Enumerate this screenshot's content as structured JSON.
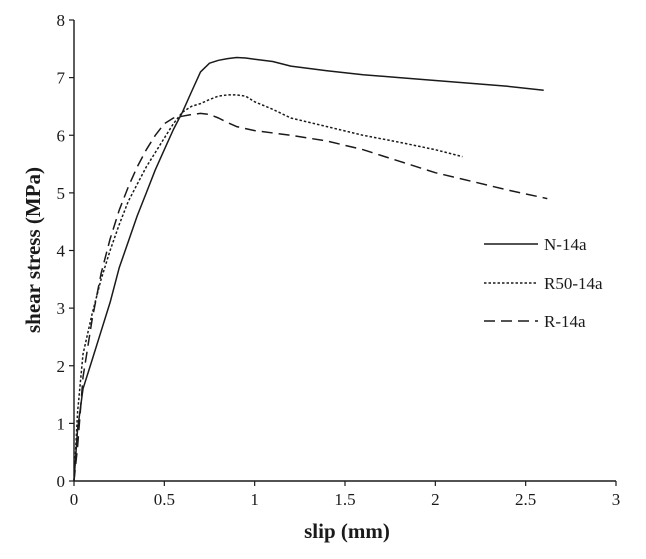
{
  "chart_data": {
    "type": "line",
    "title": "",
    "xlabel": "slip (mm)",
    "ylabel": "shear stress (MPa)",
    "xlim": [
      0,
      3
    ],
    "ylim": [
      0,
      8
    ],
    "xticks": [
      0,
      0.5,
      1,
      1.5,
      2,
      2.5,
      3
    ],
    "xtick_labels": [
      "0",
      "0.5",
      "1",
      "1.5",
      "2",
      "2.5",
      "3"
    ],
    "yticks": [
      0,
      1,
      2,
      3,
      4,
      5,
      6,
      7,
      8
    ],
    "ytick_labels": [
      "0",
      "1",
      "2",
      "3",
      "4",
      "5",
      "6",
      "7",
      "8"
    ],
    "grid": false,
    "legend_position": "right",
    "series": [
      {
        "name": "N-14a",
        "style": "solid",
        "color": "#1a1a1a",
        "x": [
          0,
          0.02,
          0.05,
          0.1,
          0.15,
          0.2,
          0.25,
          0.3,
          0.35,
          0.4,
          0.45,
          0.5,
          0.55,
          0.6,
          0.65,
          0.7,
          0.75,
          0.8,
          0.85,
          0.9,
          0.95,
          1.0,
          1.1,
          1.2,
          1.4,
          1.6,
          1.8,
          2.0,
          2.2,
          2.4,
          2.6
        ],
        "y": [
          0,
          0.9,
          1.6,
          2.1,
          2.6,
          3.1,
          3.7,
          4.15,
          4.6,
          5.0,
          5.4,
          5.75,
          6.1,
          6.4,
          6.75,
          7.1,
          7.25,
          7.3,
          7.33,
          7.35,
          7.34,
          7.32,
          7.28,
          7.2,
          7.12,
          7.05,
          7.0,
          6.95,
          6.9,
          6.85,
          6.78
        ]
      },
      {
        "name": "R50-14a",
        "style": "dotted",
        "color": "#1a1a1a",
        "x": [
          0,
          0.02,
          0.05,
          0.1,
          0.15,
          0.2,
          0.25,
          0.3,
          0.35,
          0.4,
          0.45,
          0.5,
          0.55,
          0.6,
          0.65,
          0.7,
          0.75,
          0.8,
          0.85,
          0.9,
          0.95,
          1.0,
          1.1,
          1.2,
          1.4,
          1.6,
          1.8,
          2.0,
          2.15
        ],
        "y": [
          0,
          1.2,
          2.2,
          2.9,
          3.5,
          4.0,
          4.45,
          4.85,
          5.15,
          5.45,
          5.7,
          5.95,
          6.2,
          6.4,
          6.5,
          6.55,
          6.62,
          6.68,
          6.7,
          6.7,
          6.68,
          6.58,
          6.45,
          6.3,
          6.15,
          6.0,
          5.88,
          5.75,
          5.63
        ]
      },
      {
        "name": "R-14a",
        "style": "dashed",
        "color": "#1a1a1a",
        "x": [
          0,
          0.02,
          0.05,
          0.1,
          0.15,
          0.2,
          0.25,
          0.3,
          0.35,
          0.4,
          0.45,
          0.5,
          0.55,
          0.6,
          0.65,
          0.7,
          0.75,
          0.8,
          0.85,
          0.9,
          1.0,
          1.2,
          1.4,
          1.6,
          1.8,
          2.0,
          2.2,
          2.4,
          2.62
        ],
        "y": [
          0,
          0.6,
          1.8,
          2.8,
          3.6,
          4.2,
          4.7,
          5.1,
          5.45,
          5.75,
          6.0,
          6.2,
          6.3,
          6.33,
          6.36,
          6.38,
          6.36,
          6.3,
          6.22,
          6.15,
          6.08,
          6.0,
          5.9,
          5.75,
          5.55,
          5.35,
          5.2,
          5.05,
          4.9
        ]
      }
    ]
  }
}
